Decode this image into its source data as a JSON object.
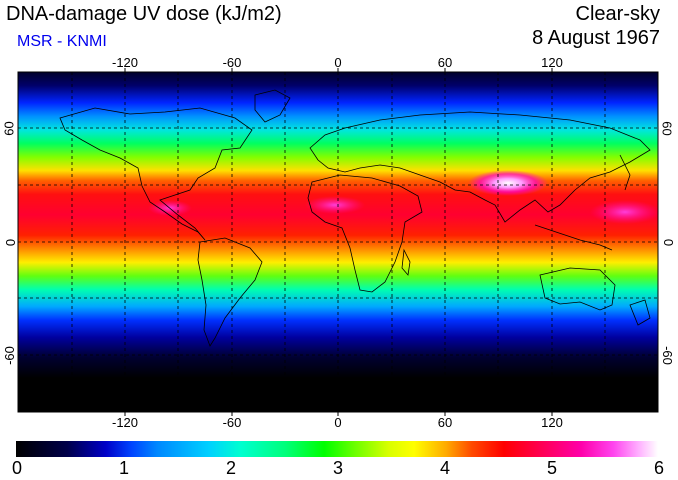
{
  "header": {
    "title": "DNA-damage UV dose (kJ/m2)",
    "subtitle": "MSR - KNMI",
    "condition": "Clear-sky",
    "date": "8 August 1967"
  },
  "map": {
    "projection": "equirectangular",
    "lon_range": [
      -180,
      180
    ],
    "lat_range": [
      -90,
      90
    ],
    "graticule": "dashed",
    "grid_spacing_deg": 30,
    "lon_tick_labels": [
      "-120",
      "-60",
      "0",
      "60",
      "120"
    ],
    "lat_tick_labels_left": [
      "60",
      "0",
      "-60"
    ],
    "lat_tick_labels_right": [
      "60",
      "0",
      "-60"
    ]
  },
  "colorbar": {
    "labels": [
      "0",
      "1",
      "2",
      "3",
      "4",
      "5",
      "6"
    ],
    "min": 0,
    "max": 6,
    "colors": [
      "#000000",
      "#0000c8",
      "#00d0ff",
      "#00ff00",
      "#ffff00",
      "#ff0000",
      "#ff00aa",
      "#ffffff"
    ]
  }
}
